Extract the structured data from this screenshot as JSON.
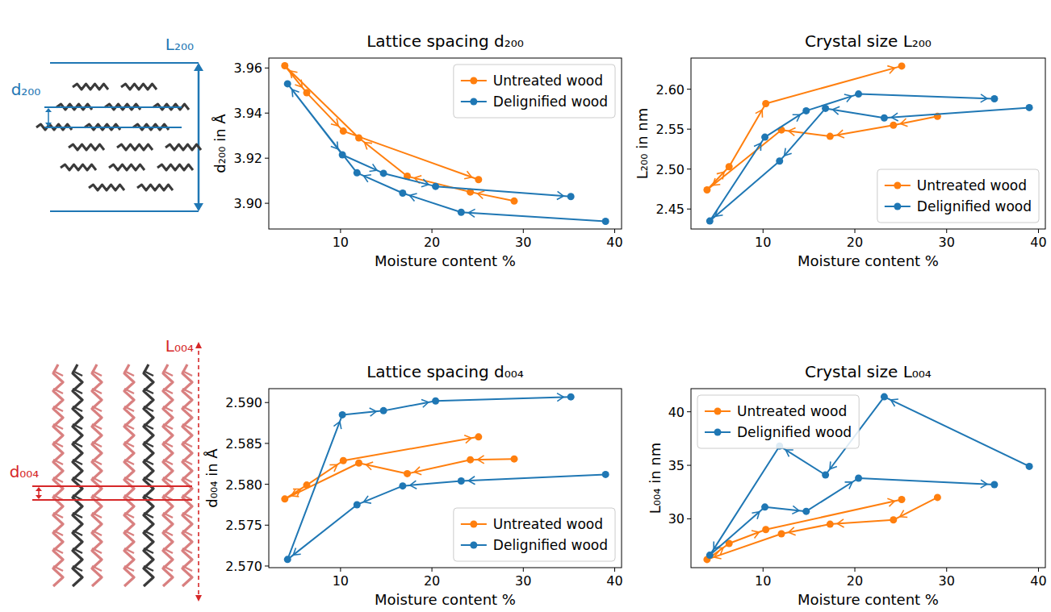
{
  "chart_data": [
    {
      "type": "line",
      "title": "Lattice spacing d₂₀₀",
      "x_label": "Moisture content %",
      "y_label": "d₂₀₀ in Å",
      "xlim": [
        2.15,
        40.75
      ],
      "xticks": [
        10,
        20,
        30,
        40
      ],
      "ylim": [
        3.8886,
        3.9644
      ],
      "yticks": [
        {
          "value": 3.9,
          "label": "3.90"
        },
        {
          "value": 3.92,
          "label": "3.92"
        },
        {
          "value": 3.94,
          "label": "3.94"
        },
        {
          "value": 3.96,
          "label": "3.96"
        }
      ],
      "grid": false,
      "legend": "upper right",
      "series": [
        {
          "name": "Untreated wood",
          "color": "#ff7f0e",
          "marker": "circle",
          "line_style": "solid",
          "x": [
            29.0,
            24.2,
            17.3,
            12.0,
            3.9,
            6.3,
            10.3,
            25.1
          ],
          "values": [
            3.901,
            3.905,
            3.912,
            3.929,
            3.961,
            3.949,
            3.932,
            3.9105
          ]
        },
        {
          "name": "Delignified wood",
          "color": "#1f77b4",
          "marker": "circle",
          "line_style": "solid",
          "x": [
            39.0,
            23.2,
            16.8,
            11.8,
            4.2,
            10.2,
            14.7,
            20.4,
            35.2
          ],
          "values": [
            3.892,
            3.896,
            3.9045,
            3.9135,
            3.953,
            3.9215,
            3.9133,
            3.9075,
            3.903
          ]
        }
      ]
    },
    {
      "type": "line",
      "title": "Crystal size L₂₀₀",
      "x_label": "Moisture content %",
      "y_label": "L₂₀₀ in nm",
      "xlim": [
        2.15,
        40.75
      ],
      "xticks": [
        10,
        20,
        30,
        40
      ],
      "ylim": [
        2.425,
        2.639
      ],
      "yticks": [
        2.45,
        {
          "value": 2.5,
          "label": "2.50"
        },
        2.55,
        {
          "value": 2.6,
          "label": "2.60"
        }
      ],
      "grid": false,
      "legend": "lower right",
      "series": [
        {
          "name": "Untreated wood",
          "color": "#ff7f0e",
          "marker": "circle",
          "line_style": "solid",
          "x": [
            29.0,
            24.2,
            17.3,
            12.0,
            3.9,
            6.3,
            10.3,
            25.1
          ],
          "values": [
            2.566,
            2.555,
            2.541,
            2.549,
            2.474,
            2.503,
            2.582,
            2.629
          ]
        },
        {
          "name": "Delignified wood",
          "color": "#1f77b4",
          "marker": "circle",
          "line_style": "solid",
          "x": [
            39.0,
            23.2,
            16.8,
            11.8,
            4.2,
            10.2,
            14.7,
            20.4,
            35.2
          ],
          "values": [
            2.577,
            2.564,
            2.576,
            2.51,
            2.435,
            2.54,
            2.573,
            2.594,
            2.588
          ]
        }
      ]
    },
    {
      "type": "line",
      "title": "Lattice spacing d₀₀₄",
      "x_label": "Moisture content %",
      "y_label": "d₀₀₄ in Å",
      "xlim": [
        2.15,
        40.75
      ],
      "xticks": [
        10,
        20,
        30,
        40
      ],
      "ylim": [
        2.5698,
        2.5917
      ],
      "yticks": [
        {
          "value": 2.57,
          "label": "2.570"
        },
        2.575,
        {
          "value": 2.58,
          "label": "2.580"
        },
        2.585,
        {
          "value": 2.59,
          "label": "2.590"
        }
      ],
      "grid": false,
      "legend": "lower right",
      "series": [
        {
          "name": "Untreated wood",
          "color": "#ff7f0e",
          "marker": "circle",
          "line_style": "solid",
          "x": [
            29.0,
            24.2,
            17.3,
            12.0,
            3.9,
            6.3,
            10.3,
            25.1
          ],
          "values": [
            2.5831,
            2.583,
            2.5813,
            2.5826,
            2.5782,
            2.5799,
            2.5829,
            2.5858
          ]
        },
        {
          "name": "Delignified wood",
          "color": "#1f77b4",
          "marker": "circle",
          "line_style": "solid",
          "x": [
            39.0,
            23.2,
            16.8,
            11.8,
            4.2,
            10.2,
            14.7,
            20.4,
            35.2
          ],
          "values": [
            2.5812,
            2.5804,
            2.5798,
            2.5775,
            2.5708,
            2.5885,
            2.589,
            2.5902,
            2.5907
          ]
        }
      ]
    },
    {
      "type": "line",
      "title": "Crystal size L₀₀₄",
      "x_label": "Moisture content %",
      "y_label": "L₀₀₄ in nm",
      "xlim": [
        2.15,
        40.75
      ],
      "xticks": [
        10,
        20,
        30,
        40
      ],
      "ylim": [
        25.44,
        42.16
      ],
      "yticks": [
        30,
        35,
        40
      ],
      "grid": false,
      "legend": "upper left",
      "series": [
        {
          "name": "Untreated wood",
          "color": "#ff7f0e",
          "marker": "circle",
          "line_style": "solid",
          "x": [
            29.0,
            24.2,
            17.3,
            12.0,
            3.9,
            6.3,
            10.3,
            25.1
          ],
          "values": [
            32.0,
            29.9,
            29.5,
            28.6,
            26.2,
            27.7,
            29.0,
            31.8
          ]
        },
        {
          "name": "Delignified wood",
          "color": "#1f77b4",
          "marker": "circle",
          "line_style": "solid",
          "x": [
            39.0,
            23.2,
            16.8,
            11.8,
            4.2,
            10.2,
            14.7,
            20.4,
            35.2
          ],
          "values": [
            34.9,
            41.4,
            34.1,
            36.8,
            26.6,
            31.1,
            30.7,
            33.8,
            33.2
          ]
        }
      ]
    }
  ],
  "schematics": [
    {
      "length_label": "L₂₀₀",
      "spacing_label": "d₂₀₀"
    },
    {
      "length_label": "L₀₀₄",
      "spacing_label": "d₀₀₄"
    }
  ]
}
